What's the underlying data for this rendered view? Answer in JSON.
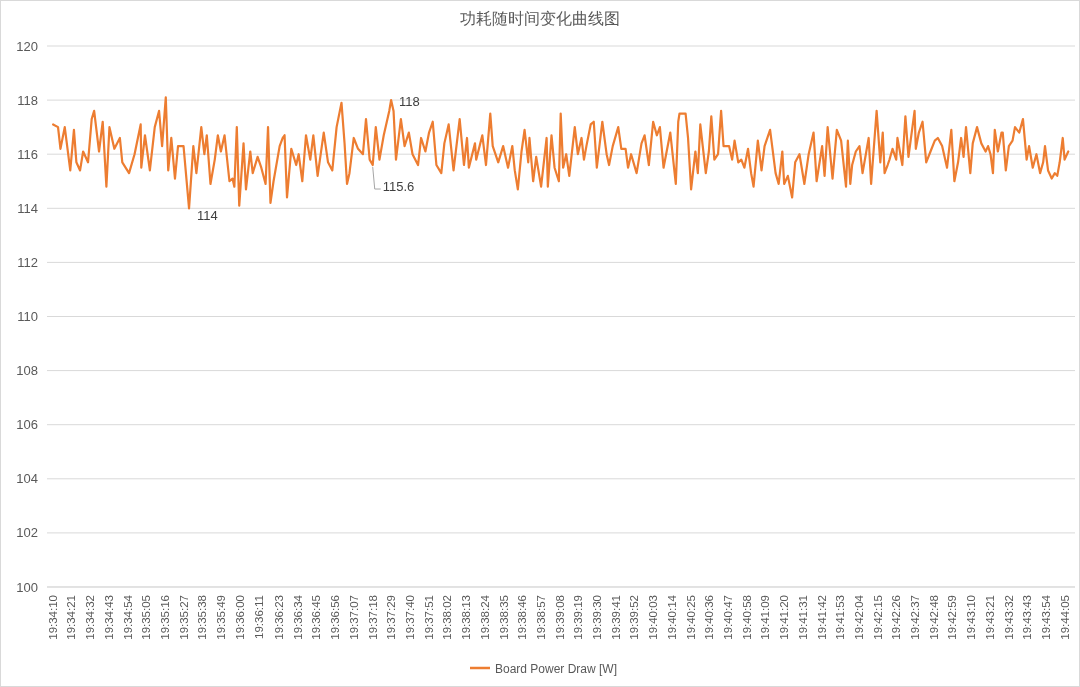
{
  "chart_data": {
    "type": "line",
    "title": "功耗随时间变化曲线图",
    "xlim": [
      19.5685,
      19.7364
    ],
    "xticks": [
      {
        "value": 19.56944,
        "label": "19:34:10"
      },
      {
        "value": 19.5725,
        "label": "19:34:21"
      },
      {
        "value": 19.57556,
        "label": "19:34:32"
      },
      {
        "value": 19.57861,
        "label": "19:34:43"
      },
      {
        "value": 19.58167,
        "label": "19:34:54"
      },
      {
        "value": 19.58472,
        "label": "19:35:05"
      },
      {
        "value": 19.58778,
        "label": "19:35:16"
      },
      {
        "value": 19.59083,
        "label": "19:35:27"
      },
      {
        "value": 19.59389,
        "label": "19:35:38"
      },
      {
        "value": 19.59694,
        "label": "19:35:49"
      },
      {
        "value": 19.6,
        "label": "19:36:00"
      },
      {
        "value": 19.60306,
        "label": "19:36:11"
      },
      {
        "value": 19.60639,
        "label": "19:36:23"
      },
      {
        "value": 19.60944,
        "label": "19:36:34"
      },
      {
        "value": 19.6125,
        "label": "19:36:45"
      },
      {
        "value": 19.61556,
        "label": "19:36:56"
      },
      {
        "value": 19.61861,
        "label": "19:37:07"
      },
      {
        "value": 19.62167,
        "label": "19:37:18"
      },
      {
        "value": 19.62472,
        "label": "19:37:29"
      },
      {
        "value": 19.62778,
        "label": "19:37:40"
      },
      {
        "value": 19.63083,
        "label": "19:37:51"
      },
      {
        "value": 19.63389,
        "label": "19:38:02"
      },
      {
        "value": 19.63694,
        "label": "19:38:13"
      },
      {
        "value": 19.64,
        "label": "19:38:24"
      },
      {
        "value": 19.64306,
        "label": "19:38:35"
      },
      {
        "value": 19.64611,
        "label": "19:38:46"
      },
      {
        "value": 19.64917,
        "label": "19:38:57"
      },
      {
        "value": 19.65222,
        "label": "19:39:08"
      },
      {
        "value": 19.65528,
        "label": "19:39:19"
      },
      {
        "value": 19.65833,
        "label": "19:39:30"
      },
      {
        "value": 19.66139,
        "label": "19:39:41"
      },
      {
        "value": 19.66444,
        "label": "19:39:52"
      },
      {
        "value": 19.6675,
        "label": "19:40:03"
      },
      {
        "value": 19.67056,
        "label": "19:40:14"
      },
      {
        "value": 19.67361,
        "label": "19:40:25"
      },
      {
        "value": 19.67667,
        "label": "19:40:36"
      },
      {
        "value": 19.67972,
        "label": "19:40:47"
      },
      {
        "value": 19.68278,
        "label": "19:40:58"
      },
      {
        "value": 19.68583,
        "label": "19:41:09"
      },
      {
        "value": 19.68889,
        "label": "19:41:20"
      },
      {
        "value": 19.69194,
        "label": "19:41:31"
      },
      {
        "value": 19.695,
        "label": "19:41:42"
      },
      {
        "value": 19.69806,
        "label": "19:41:53"
      },
      {
        "value": 19.70111,
        "label": "19:42:04"
      },
      {
        "value": 19.70417,
        "label": "19:42:15"
      },
      {
        "value": 19.70722,
        "label": "19:42:26"
      },
      {
        "value": 19.71028,
        "label": "19:42:37"
      },
      {
        "value": 19.71333,
        "label": "19:42:48"
      },
      {
        "value": 19.71639,
        "label": "19:42:59"
      },
      {
        "value": 19.71944,
        "label": "19:43:10"
      },
      {
        "value": 19.7225,
        "label": "19:43:21"
      },
      {
        "value": 19.72556,
        "label": "19:43:32"
      },
      {
        "value": 19.72861,
        "label": "19:43:43"
      },
      {
        "value": 19.73167,
        "label": "19:43:54"
      },
      {
        "value": 19.73472,
        "label": "19:44:05"
      }
    ],
    "ylim": [
      100,
      120
    ],
    "yticks": [
      100,
      102,
      104,
      106,
      108,
      110,
      112,
      114,
      116,
      118,
      120
    ],
    "grid": "y",
    "legend": "bottom",
    "marker": "none",
    "line_style": "solid",
    "annotations": [
      {
        "text": "118",
        "x": 19.6247,
        "y": 118.0
      },
      {
        "text": "114",
        "x": 19.5917,
        "y": 114.0
      },
      {
        "text": "115.6",
        "x": 19.6217,
        "y": 115.6
      }
    ],
    "series": [
      {
        "name": "Board Power Draw [W]",
        "color": "#ed7d31",
        "x": [
          19.5695,
          19.5703,
          19.5707,
          19.5714,
          19.5723,
          19.5729,
          19.5733,
          19.5739,
          19.5744,
          19.5752,
          19.5758,
          19.5762,
          19.577,
          19.5776,
          19.5782,
          19.5787,
          19.5795,
          19.5804,
          19.5808,
          19.5819,
          19.5828,
          19.5838,
          19.5839,
          19.5845,
          19.5853,
          19.5861,
          19.5868,
          19.5873,
          19.5879,
          19.5883,
          19.5888,
          19.5894,
          19.5899,
          19.5908,
          19.5917,
          19.5924,
          19.5929,
          19.5937,
          19.5942,
          19.5946,
          19.5952,
          19.5959,
          19.5964,
          19.5969,
          19.5975,
          19.5983,
          19.5988,
          19.5991,
          19.5995,
          19.5999,
          19.6006,
          19.601,
          19.6017,
          19.6021,
          19.6029,
          19.6035,
          19.6042,
          19.6046,
          19.605,
          19.6055,
          19.6065,
          19.607,
          19.6073,
          19.6077,
          19.6084,
          19.6092,
          19.6096,
          19.6102,
          19.6108,
          19.6115,
          19.612,
          19.6127,
          19.6137,
          19.6144,
          19.6151,
          19.6158,
          19.6166,
          19.6171,
          19.6175,
          19.6179,
          19.6186,
          19.6193,
          19.6201,
          19.6206,
          19.6212,
          19.6217,
          19.6222,
          19.6228,
          19.6235,
          19.6244,
          19.6247,
          19.6251,
          19.6255,
          19.6263,
          19.6269,
          19.6276,
          19.6282,
          19.6291,
          19.6296,
          19.6303,
          19.6309,
          19.6315,
          19.6321,
          19.6329,
          19.6334,
          19.6341,
          19.6349,
          19.6359,
          19.6366,
          19.6371,
          19.6374,
          19.6384,
          19.6386,
          19.6396,
          19.6402,
          19.6409,
          19.6413,
          19.6422,
          19.643,
          19.6438,
          19.6445,
          19.6449,
          19.6454,
          19.646,
          19.6465,
          19.6471,
          19.6473,
          19.6479,
          19.6484,
          19.6492,
          19.6501,
          19.6503,
          19.6509,
          19.6514,
          19.6521,
          19.6524,
          19.6528,
          19.6533,
          19.6538,
          19.6547,
          19.6552,
          19.6558,
          19.6562,
          19.6566,
          19.6573,
          19.6578,
          19.6583,
          19.6592,
          19.6599,
          19.6603,
          19.6609,
          19.6618,
          19.6623,
          19.663,
          19.6634,
          19.6639,
          19.6648,
          19.6656,
          19.6661,
          19.6668,
          19.6675,
          19.6681,
          19.6686,
          19.6692,
          19.6703,
          19.6712,
          19.6716,
          19.6718,
          19.6725,
          19.6728,
          19.6732,
          19.6737,
          19.6744,
          19.6748,
          19.6752,
          19.6756,
          19.6761,
          19.6766,
          19.677,
          19.6775,
          19.6781,
          19.6786,
          19.679,
          19.6799,
          19.6804,
          19.6808,
          19.6814,
          19.6819,
          19.6824,
          19.683,
          19.6835,
          19.6839,
          19.6846,
          19.6852,
          19.6857,
          19.6866,
          19.6875,
          19.688,
          19.6886,
          19.6889,
          19.6895,
          19.6902,
          19.6907,
          19.6914,
          19.6922,
          19.6929,
          19.6937,
          19.6942,
          19.6951,
          19.6955,
          19.696,
          19.6968,
          19.6975,
          19.6982,
          19.699,
          19.6993,
          19.6997,
          19.7,
          19.7006,
          19.7012,
          19.7017,
          19.7027,
          19.7031,
          19.704,
          19.7046,
          19.705,
          19.7053,
          19.7058,
          19.7061,
          19.7066,
          19.7072,
          19.7074,
          19.7082,
          19.7087,
          19.7092,
          19.7102,
          19.7104,
          19.7109,
          19.7115,
          19.7121,
          19.7128,
          19.7135,
          19.714,
          19.7147,
          19.7155,
          19.7162,
          19.7167,
          19.7173,
          19.7178,
          19.7182,
          19.7186,
          19.7193,
          19.7197,
          19.7204,
          19.7211,
          19.7218,
          19.7222,
          19.7226,
          19.723,
          19.7233,
          19.7238,
          19.7244,
          19.7246,
          19.7251,
          19.7256,
          19.7262,
          19.7266,
          19.7273,
          19.7279,
          19.7285,
          19.7289,
          19.7295,
          19.7301,
          19.7307,
          19.7312,
          19.7315,
          19.732,
          19.7326,
          19.7331,
          19.7335,
          19.7339,
          19.7344,
          19.7347,
          19.7353
        ],
        "values": [
          117.1,
          117.0,
          116.2,
          117.0,
          115.4,
          116.9,
          115.7,
          115.4,
          116.1,
          115.7,
          117.3,
          117.6,
          116.1,
          117.2,
          114.8,
          117.0,
          116.2,
          116.6,
          115.7,
          115.3,
          116.0,
          117.1,
          115.5,
          116.7,
          115.4,
          117.0,
          117.6,
          116.3,
          118.1,
          115.4,
          116.6,
          115.1,
          116.3,
          116.3,
          114.0,
          116.3,
          115.3,
          117.0,
          116.0,
          116.7,
          114.9,
          115.8,
          116.7,
          116.1,
          116.7,
          115.0,
          115.1,
          114.8,
          117.0,
          114.1,
          116.4,
          114.7,
          116.1,
          115.3,
          115.9,
          115.5,
          114.9,
          117.0,
          114.2,
          115.0,
          116.3,
          116.6,
          116.7,
          114.4,
          116.2,
          115.6,
          116.0,
          115.0,
          116.7,
          115.8,
          116.7,
          115.2,
          116.8,
          115.7,
          115.4,
          117.0,
          117.9,
          116.4,
          114.9,
          115.3,
          116.6,
          116.2,
          116.0,
          117.3,
          115.8,
          115.6,
          117.0,
          115.8,
          116.7,
          117.6,
          118.0,
          117.6,
          115.8,
          117.3,
          116.3,
          116.8,
          116.0,
          115.6,
          116.6,
          116.1,
          116.8,
          117.2,
          115.6,
          115.3,
          116.4,
          117.1,
          115.4,
          117.3,
          115.6,
          116.6,
          115.5,
          116.4,
          115.8,
          116.7,
          115.6,
          117.5,
          116.3,
          115.7,
          116.3,
          115.5,
          116.3,
          115.4,
          114.7,
          116.1,
          116.9,
          115.7,
          116.6,
          115.0,
          115.9,
          114.8,
          116.6,
          114.8,
          116.7,
          115.5,
          115.0,
          117.5,
          115.5,
          116.0,
          115.2,
          117.0,
          116.0,
          116.6,
          115.8,
          116.3,
          117.1,
          117.2,
          115.5,
          117.2,
          116.0,
          115.6,
          116.3,
          117.0,
          116.2,
          116.2,
          115.5,
          116.0,
          115.3,
          116.4,
          116.7,
          115.6,
          117.2,
          116.7,
          117.0,
          115.5,
          116.8,
          114.9,
          117.2,
          117.5,
          117.5,
          117.5,
          116.6,
          114.7,
          116.1,
          115.3,
          117.1,
          116.3,
          115.3,
          116.1,
          117.4,
          115.8,
          116.0,
          117.6,
          116.3,
          116.3,
          115.8,
          116.5,
          115.7,
          115.8,
          115.5,
          116.2,
          115.3,
          114.8,
          116.5,
          115.4,
          116.3,
          116.9,
          115.3,
          114.9,
          116.1,
          114.9,
          115.2,
          114.4,
          115.7,
          116.0,
          114.9,
          116.0,
          116.8,
          115.0,
          116.3,
          115.2,
          117.0,
          115.1,
          116.9,
          116.5,
          114.8,
          116.5,
          114.9,
          115.6,
          116.1,
          116.3,
          115.3,
          116.6,
          114.9,
          117.6,
          115.7,
          116.8,
          115.3,
          115.6,
          115.8,
          116.2,
          115.8,
          116.6,
          115.6,
          117.4,
          115.9,
          117.6,
          116.2,
          116.8,
          117.2,
          115.7,
          116.1,
          116.5,
          116.6,
          116.3,
          115.5,
          116.9,
          115.0,
          115.7,
          116.6,
          115.9,
          117.0,
          115.3,
          116.4,
          117.0,
          116.4,
          116.1,
          116.3,
          116.0,
          115.3,
          116.9,
          116.1,
          116.8,
          116.8,
          115.4,
          116.3,
          116.5,
          117.0,
          116.8,
          117.3,
          115.8,
          116.3,
          115.5,
          116.0,
          115.3,
          115.7,
          116.3,
          115.4,
          115.1,
          115.3,
          115.2,
          115.7,
          116.6,
          115.8,
          116.1
        ]
      }
    ]
  }
}
